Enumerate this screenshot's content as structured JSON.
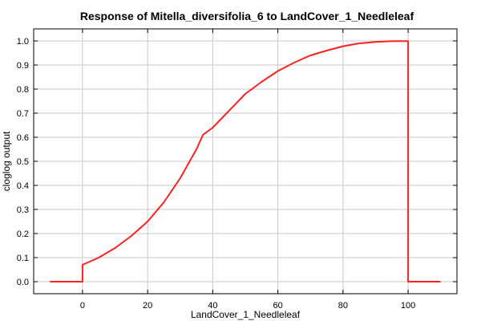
{
  "chart_data": {
    "type": "line",
    "title": "Response of Mitella_diversifolia_6 to LandCover_1_Needleleaf",
    "xlabel": "LandCover_1_Needleleaf",
    "ylabel": "cloglog output",
    "xlim": [
      -15,
      115
    ],
    "ylim": [
      -0.05,
      1.05
    ],
    "xticks": [
      0,
      20,
      40,
      60,
      80,
      100
    ],
    "yticks": [
      0.0,
      0.1,
      0.2,
      0.3,
      0.4,
      0.5,
      0.6,
      0.7,
      0.8,
      0.9,
      1.0
    ],
    "xtick_labels": [
      "0",
      "20",
      "40",
      "60",
      "80",
      "100"
    ],
    "ytick_labels": [
      "0.0",
      "0.1",
      "0.2",
      "0.3",
      "0.4",
      "0.5",
      "0.6",
      "0.7",
      "0.8",
      "0.9",
      "1.0"
    ],
    "grid": true,
    "series": [
      {
        "color": "#ff2020",
        "x": [
          -10,
          0,
          0,
          5,
          10,
          15,
          20,
          25,
          30,
          35,
          37,
          40,
          45,
          50,
          55,
          60,
          65,
          70,
          75,
          80,
          85,
          90,
          95,
          100,
          100,
          110
        ],
        "y": [
          0.0,
          0.0,
          0.07,
          0.1,
          0.14,
          0.19,
          0.25,
          0.33,
          0.43,
          0.55,
          0.61,
          0.64,
          0.71,
          0.78,
          0.83,
          0.875,
          0.91,
          0.94,
          0.96,
          0.978,
          0.99,
          0.996,
          0.999,
          0.999,
          0.0,
          0.0
        ]
      }
    ]
  }
}
